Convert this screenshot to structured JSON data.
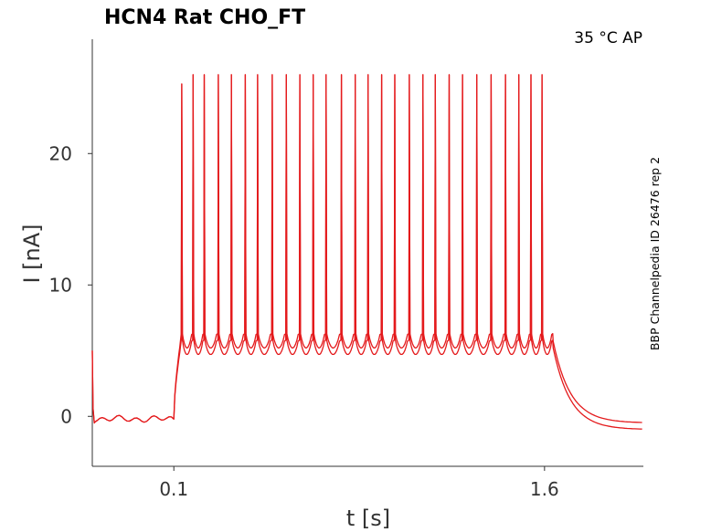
{
  "chart_data": {
    "type": "line",
    "title": "HCN4  Rat  CHO_FT",
    "annotation": "35 °C  AP",
    "side_label": "BBP Channelpedia ID 26476 rep 2",
    "xlabel": "t [s]",
    "ylabel": "I [nA]",
    "xlim": [
      -0.23,
      2.0
    ],
    "ylim": [
      -3.8,
      28.7
    ],
    "xticks": [
      0.1,
      1.6
    ],
    "xtick_labels": [
      "0.1",
      "1.6"
    ],
    "yticks": [
      0,
      10,
      20
    ],
    "ytick_labels": [
      "0",
      "10",
      "20"
    ],
    "grid": false,
    "line_color": "#e41a1c",
    "stimulus": {
      "step_on": 0.1,
      "step_off": 1.635,
      "spike_times": [
        0.132,
        0.178,
        0.223,
        0.28,
        0.333,
        0.389,
        0.439,
        0.498,
        0.555,
        0.61,
        0.664,
        0.716,
        0.778,
        0.834,
        0.886,
        0.941,
        0.994,
        1.053,
        1.108,
        1.158,
        1.214,
        1.268,
        1.326,
        1.384,
        1.442,
        1.496,
        1.545,
        1.59
      ]
    },
    "series": [
      {
        "baseline": -0.2,
        "trough": 5.2,
        "interspike_peak": 6.3,
        "spike_peak": 26.0,
        "first_spike_peak": 25.3,
        "tail": -0.5
      },
      {
        "baseline": -0.2,
        "trough": 4.7,
        "interspike_peak": 5.8,
        "spike_peak": 26.0,
        "first_spike_peak": 25.3,
        "tail": -1.0
      }
    ]
  }
}
